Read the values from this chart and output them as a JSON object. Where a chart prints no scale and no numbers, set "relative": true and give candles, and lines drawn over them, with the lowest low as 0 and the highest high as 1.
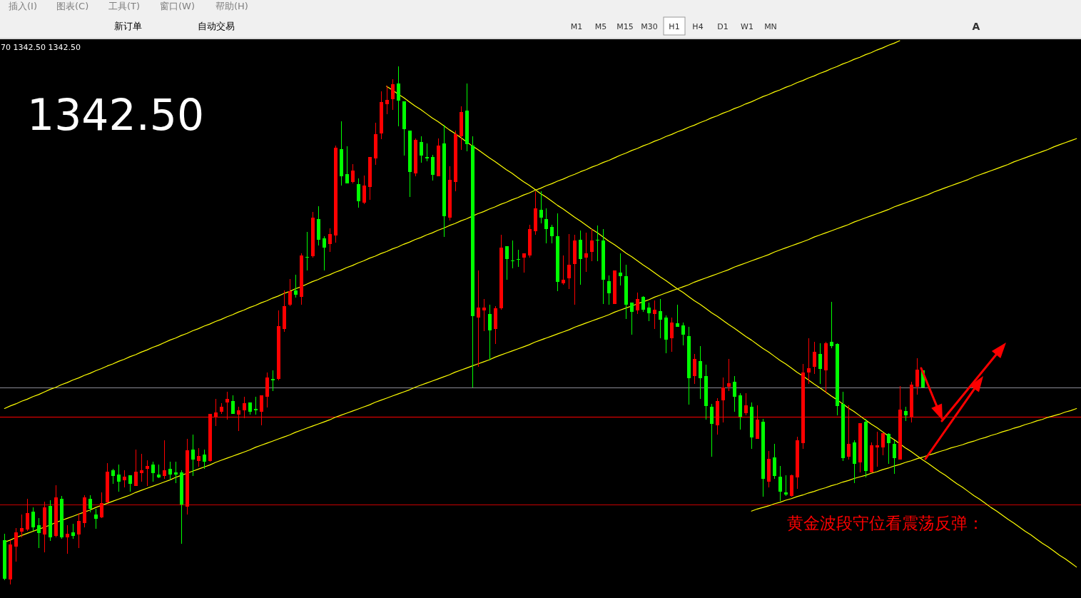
{
  "chart_data": {
    "type": "candlestick",
    "relative": true,
    "categories": [
      null,
      null,
      null,
      null,
      null,
      null,
      null,
      null,
      null,
      null,
      null,
      null,
      null,
      null,
      null,
      null,
      null,
      null,
      null,
      null,
      null,
      null,
      null,
      null,
      null,
      null,
      null,
      null,
      null,
      null,
      null,
      null,
      null,
      null,
      null,
      null,
      null,
      null,
      null,
      null,
      null,
      null,
      null,
      null,
      null,
      null,
      null,
      null,
      null,
      null,
      null,
      null,
      null,
      null,
      null,
      null,
      null,
      null,
      null,
      null,
      null,
      null,
      null,
      null,
      null,
      null,
      null,
      null,
      null,
      null,
      null,
      null,
      null,
      null,
      null,
      null,
      null,
      null,
      null,
      null,
      null,
      null,
      null,
      null,
      null,
      null,
      null,
      null,
      null,
      null,
      null,
      null,
      null,
      null,
      null,
      null,
      null,
      null,
      null,
      null,
      null,
      null,
      null,
      null,
      null,
      null,
      null,
      null,
      null,
      null,
      null,
      null,
      null,
      null,
      null,
      null,
      null,
      null,
      null,
      null,
      null,
      null,
      null,
      null,
      null,
      null,
      null,
      null,
      null,
      null,
      null,
      null,
      null,
      null,
      null,
      null,
      null,
      null,
      null,
      null,
      null,
      null,
      null,
      null,
      null,
      null,
      null,
      null,
      null,
      null,
      null,
      null,
      null,
      null,
      null,
      null,
      null,
      null,
      null,
      null,
      null,
      null,
      null,
      null,
      null,
      null,
      null,
      null,
      null,
      null,
      null,
      null,
      null,
      null,
      null,
      null,
      null,
      null,
      null,
      null,
      null,
      null,
      null,
      null,
      null,
      null,
      null,
      null,
      null
    ],
    "ohlc": [
      [
        0.086,
        0.098,
        0.008,
        0.012
      ],
      [
        0.01,
        0.086,
        0,
        0.078
      ],
      [
        0.074,
        0.109,
        0.045,
        0.101
      ],
      [
        0.103,
        0.136,
        0.091,
        0.109
      ],
      [
        0.106,
        0.166,
        0.104,
        0.138
      ],
      [
        0.141,
        0.149,
        0.104,
        0.111
      ],
      [
        0.115,
        0.129,
        0.071,
        0.1
      ],
      [
        0.097,
        0.16,
        0.063,
        0.149
      ],
      [
        0.152,
        0.163,
        0.085,
        0.092
      ],
      [
        0.094,
        0.192,
        0.092,
        0.169
      ],
      [
        0.166,
        0.171,
        0.088,
        0.091
      ],
      [
        0.092,
        0.115,
        0.06,
        0.098
      ],
      [
        0.101,
        0.118,
        0.088,
        0.094
      ],
      [
        0.097,
        0.138,
        0.071,
        0.123
      ],
      [
        0.119,
        0.173,
        0.111,
        0.169
      ],
      [
        0.166,
        0.173,
        0.14,
        0.146
      ],
      [
        0.136,
        0.147,
        0.108,
        0.127
      ],
      [
        0.13,
        0.178,
        0.128,
        0.158
      ],
      [
        0.159,
        0.235,
        0.157,
        0.218
      ],
      [
        0.221,
        0.224,
        0.194,
        0.21
      ],
      [
        0.213,
        0.232,
        0.18,
        0.199
      ],
      [
        0.202,
        0.221,
        0.188,
        0.209
      ],
      [
        0.211,
        0.211,
        0.18,
        0.194
      ],
      [
        0.191,
        0.261,
        0.191,
        0.218
      ],
      [
        0.215,
        0.253,
        0.199,
        0.221
      ],
      [
        0.223,
        0.24,
        0.191,
        0.229
      ],
      [
        0.232,
        0.238,
        0.199,
        0.215
      ],
      [
        0.213,
        0.232,
        0.205,
        0.207
      ],
      [
        0.21,
        0.278,
        0.204,
        0.221
      ],
      [
        0.224,
        0.238,
        0.202,
        0.212
      ],
      [
        0.216,
        0.238,
        0.196,
        0.212
      ],
      [
        0.216,
        0.221,
        0.079,
        0.155
      ],
      [
        0.151,
        0.281,
        0.135,
        0.259
      ],
      [
        0.261,
        0.289,
        0.21,
        0.242
      ],
      [
        0.239,
        0.264,
        0.228,
        0.249
      ],
      [
        0.251,
        0.261,
        0.223,
        0.237
      ],
      [
        0.239,
        0.329,
        0.237,
        0.329
      ],
      [
        0.324,
        0.358,
        0.306,
        0.333
      ],
      [
        0.334,
        0.35,
        0.33,
        0.344
      ],
      [
        0.351,
        0.372,
        0.319,
        0.358
      ],
      [
        0.355,
        0.366,
        0.33,
        0.33
      ],
      [
        0.328,
        0.344,
        0.297,
        0.336
      ],
      [
        0.337,
        0.363,
        0.322,
        0.35
      ],
      [
        0.352,
        0.352,
        0.328,
        0.334
      ],
      [
        0.339,
        0.363,
        0.328,
        0.337
      ],
      [
        0.334,
        0.366,
        0.308,
        0.366
      ],
      [
        0.362,
        0.409,
        0.342,
        0.4
      ],
      [
        0.397,
        0.413,
        0.374,
        0.394
      ],
      [
        0.397,
        0.529,
        0.394,
        0.499
      ],
      [
        0.494,
        0.568,
        0.488,
        0.538
      ],
      [
        0.54,
        0.59,
        0.537,
        0.567
      ],
      [
        0.568,
        0.598,
        0.554,
        0.559
      ],
      [
        0.556,
        0.64,
        0.54,
        0.635
      ],
      [
        0.633,
        0.681,
        0.607,
        0.631
      ],
      [
        0.634,
        0.72,
        0.631,
        0.709
      ],
      [
        0.706,
        0.731,
        0.654,
        0.666
      ],
      [
        0.669,
        0.672,
        0.607,
        0.65
      ],
      [
        0.657,
        0.688,
        0.642,
        0.677
      ],
      [
        0.674,
        0.848,
        0.66,
        0.843
      ],
      [
        0.84,
        0.895,
        0.771,
        0.788
      ],
      [
        0.792,
        0.846,
        0.774,
        0.774
      ],
      [
        0.777,
        0.812,
        0.774,
        0.8
      ],
      [
        0.773,
        0.784,
        0.727,
        0.74
      ],
      [
        0.737,
        0.789,
        0.734,
        0.771
      ],
      [
        0.767,
        0.826,
        0.743,
        0.826
      ],
      [
        0.823,
        0.892,
        0.81,
        0.869
      ],
      [
        0.871,
        0.952,
        0.86,
        0.931
      ],
      [
        0.927,
        0.963,
        0.908,
        0.935
      ],
      [
        0.937,
        0.975,
        0.916,
        0.966
      ],
      [
        0.968,
        1,
        0.885,
        0.934
      ],
      [
        0.933,
        0.933,
        0.828,
        0.879
      ],
      [
        0.877,
        0.877,
        0.748,
        0.796
      ],
      [
        0.794,
        0.861,
        0.788,
        0.858
      ],
      [
        0.855,
        0.866,
        0.814,
        0.828
      ],
      [
        0.826,
        0.851,
        0.817,
        0.823
      ],
      [
        0.826,
        0.829,
        0.78,
        0.791
      ],
      [
        0.788,
        0.861,
        0.788,
        0.848
      ],
      [
        0.851,
        0.888,
        0.671,
        0.711
      ],
      [
        0.708,
        0.808,
        0.703,
        0.781
      ],
      [
        0.777,
        0.877,
        0.759,
        0.869
      ],
      [
        0.865,
        0.923,
        0.839,
        0.912
      ],
      [
        0.915,
        0.968,
        0.836,
        0.85
      ],
      [
        0.848,
        0.866,
        0.381,
        0.519
      ],
      [
        0.516,
        0.606,
        0.42,
        0.535
      ],
      [
        0.53,
        0.552,
        0.49,
        0.535
      ],
      [
        0.523,
        0.541,
        0.433,
        0.491
      ],
      [
        0.494,
        0.538,
        0.465,
        0.533
      ],
      [
        0.534,
        0.675,
        0.531,
        0.651
      ],
      [
        0.653,
        0.653,
        0.588,
        0.628
      ],
      [
        0.626,
        0.664,
        0.611,
        0.625
      ],
      [
        0.629,
        0.646,
        0.614,
        0.628
      ],
      [
        0.631,
        0.64,
        0.602,
        0.64
      ],
      [
        0.636,
        0.695,
        0.631,
        0.686
      ],
      [
        0.682,
        0.76,
        0.676,
        0.726
      ],
      [
        0.723,
        0.76,
        0.697,
        0.708
      ],
      [
        0.706,
        0.726,
        0.659,
        0.687
      ],
      [
        0.691,
        0.695,
        0.659,
        0.673
      ],
      [
        0.672,
        0.717,
        0.567,
        0.585
      ],
      [
        0.582,
        0.635,
        0.579,
        0.589
      ],
      [
        0.591,
        0.677,
        0.571,
        0.618
      ],
      [
        0.619,
        0.675,
        0.54,
        0.664
      ],
      [
        0.666,
        0.683,
        0.579,
        0.628
      ],
      [
        0.631,
        0.68,
        0.604,
        0.64
      ],
      [
        0.642,
        0.687,
        0.625,
        0.664
      ],
      [
        0.666,
        0.693,
        0.625,
        0.665
      ],
      [
        0.664,
        0.686,
        0.542,
        0.588
      ],
      [
        0.586,
        0.597,
        0.54,
        0.562
      ],
      [
        0.542,
        0.606,
        0.542,
        0.606
      ],
      [
        0.603,
        0.64,
        0.577,
        0.596
      ],
      [
        0.595,
        0.618,
        0.513,
        0.54
      ],
      [
        0.544,
        0.544,
        0.482,
        0.527
      ],
      [
        0.53,
        0.564,
        0.522,
        0.552
      ],
      [
        0.555,
        0.557,
        0.527,
        0.531
      ],
      [
        0.535,
        0.544,
        0.508,
        0.524
      ],
      [
        0.522,
        0.549,
        0.494,
        0.531
      ],
      [
        0.528,
        0.552,
        0.476,
        0.511
      ],
      [
        0.515,
        0.52,
        0.447,
        0.473
      ],
      [
        0.476,
        0.515,
        0.45,
        0.506
      ],
      [
        0.504,
        0.541,
        0.497,
        0.497
      ],
      [
        0.501,
        0.506,
        0.462,
        0.482
      ],
      [
        0.48,
        0.498,
        0.348,
        0.399
      ],
      [
        0.402,
        0.446,
        0.388,
        0.435
      ],
      [
        0.432,
        0.461,
        0.359,
        0.399
      ],
      [
        0.403,
        0.424,
        0.319,
        0.345
      ],
      [
        0.344,
        0.349,
        0.247,
        0.311
      ],
      [
        0.308,
        0.36,
        0.29,
        0.355
      ],
      [
        0.356,
        0.4,
        0.313,
        0.381
      ],
      [
        0.382,
        0.435,
        0.374,
        0.389
      ],
      [
        0.392,
        0.403,
        0.334,
        0.362
      ],
      [
        0.366,
        0.369,
        0.3,
        0.324
      ],
      [
        0.331,
        0.369,
        0.327,
        0.346
      ],
      [
        0.344,
        0.352,
        0.262,
        0.284
      ],
      [
        0.282,
        0.346,
        0.282,
        0.318
      ],
      [
        0.315,
        0.32,
        0.17,
        0.204
      ],
      [
        0.199,
        0.258,
        0.188,
        0.243
      ],
      [
        0.246,
        0.272,
        0.204,
        0.21
      ],
      [
        0.209,
        0.229,
        0.162,
        0.18
      ],
      [
        0.178,
        0.211,
        0.171,
        0.174
      ],
      [
        0.171,
        0.213,
        0.17,
        0.211
      ],
      [
        0.207,
        0.286,
        0.185,
        0.278
      ],
      [
        0.273,
        0.426,
        0.262,
        0.409
      ],
      [
        0.41,
        0.475,
        0.388,
        0.418
      ],
      [
        0.42,
        0.469,
        0.407,
        0.449
      ],
      [
        0.446,
        0.466,
        0.388,
        0.417
      ],
      [
        0.414,
        0.469,
        0.37,
        0.466
      ],
      [
        0.469,
        0.546,
        0.457,
        0.46
      ],
      [
        0.464,
        0.466,
        0.327,
        0.345
      ],
      [
        0.349,
        0.373,
        0.239,
        0.244
      ],
      [
        0.247,
        0.346,
        0.242,
        0.272
      ],
      [
        0.275,
        0.278,
        0.196,
        0.233
      ],
      [
        0.236,
        0.312,
        0.217,
        0.312
      ],
      [
        0.315,
        0.32,
        0.207,
        0.22
      ],
      [
        0.217,
        0.275,
        0.217,
        0.269
      ],
      [
        0.265,
        0.295,
        0.228,
        0.269
      ],
      [
        0.265,
        0.293,
        0.25,
        0.293
      ],
      [
        0.291,
        0.293,
        0.233,
        0.273
      ],
      [
        0.272,
        0.278,
        0.214,
        0.244
      ],
      [
        0.242,
        0.384,
        0.242,
        0.338
      ],
      [
        0.335,
        0.344,
        0.316,
        0.327
      ],
      [
        0.324,
        0.392,
        0.313,
        0.386
      ],
      [
        0.382,
        0.437,
        0.367,
        0.415
      ],
      [
        0.413,
        0.413,
        0.38,
        0.38
      ],
      null,
      null,
      null,
      null,
      null,
      null,
      null,
      null,
      null,
      null,
      null,
      null,
      null,
      null,
      null,
      null,
      null,
      null,
      null,
      null,
      null,
      null,
      null,
      null,
      null,
      null,
      null
    ],
    "colors": [
      "#00ff00",
      "#ff0000",
      "#ff0000",
      "#ff0000",
      "#ff0000",
      "#00ff00",
      "#00ff00",
      "#ff0000",
      "#00ff00",
      "#ff0000",
      "#00ff00",
      "#ff0000",
      "#00ff00",
      "#ff0000",
      "#ff0000",
      "#00ff00",
      "#00ff00",
      "#ff0000",
      "#ff0000",
      "#00ff00",
      "#00ff00",
      "#ff0000",
      "#00ff00",
      "#ff0000",
      "#ff0000",
      "#ff0000",
      "#00ff00",
      "#00ff00",
      "#ff0000",
      "#00ff00",
      "#00ff00",
      "#00ff00",
      "#ff0000",
      "#00ff00",
      "#ff0000",
      "#00ff00",
      "#ff0000",
      "#ff0000",
      "#ff0000",
      "#ff0000",
      "#00ff00",
      "#ff0000",
      "#ff0000",
      "#00ff00",
      "#00ff00",
      "#ff0000",
      "#ff0000",
      "#00ff00",
      "#ff0000",
      "#ff0000",
      "#ff0000",
      "#00ff00",
      "#ff0000",
      "#00ff00",
      "#ff0000",
      "#00ff00",
      "#00ff00",
      "#ff0000",
      "#ff0000",
      "#00ff00",
      "#00ff00",
      "#ff0000",
      "#00ff00",
      "#ff0000",
      "#ff0000",
      "#ff0000",
      "#ff0000",
      "#ff0000",
      "#ff0000",
      "#00ff00",
      "#00ff00",
      "#00ff00",
      "#ff0000",
      "#00ff00",
      "#00ff00",
      "#00ff00",
      "#ff0000",
      "#00ff00",
      "#ff0000",
      "#ff0000",
      "#ff0000",
      "#00ff00",
      "#00ff00",
      "#ff0000",
      "#ff0000",
      "#00ff00",
      "#ff0000",
      "#ff0000",
      "#00ff00",
      "#00ff00",
      "#00ff00",
      "#ff0000",
      "#ff0000",
      "#ff0000",
      "#00ff00",
      "#00ff00",
      "#00ff00",
      "#00ff00",
      "#ff0000",
      "#ff0000",
      "#ff0000",
      "#00ff00",
      "#ff0000",
      "#ff0000",
      "#00ff00",
      "#00ff00",
      "#00ff00",
      "#ff0000",
      "#00ff00",
      "#00ff00",
      "#00ff00",
      "#ff0000",
      "#00ff00",
      "#00ff00",
      "#ff0000",
      "#00ff00",
      "#00ff00",
      "#ff0000",
      "#00ff00",
      "#00ff00",
      "#00ff00",
      "#ff0000",
      "#00ff00",
      "#00ff00",
      "#00ff00",
      "#ff0000",
      "#ff0000",
      "#ff0000",
      "#00ff00",
      "#00ff00",
      "#ff0000",
      "#00ff00",
      "#ff0000",
      "#00ff00",
      "#ff0000",
      "#00ff00",
      "#00ff00",
      "#00ff00",
      "#ff0000",
      "#ff0000",
      "#ff0000",
      "#ff0000",
      "#ff0000",
      "#00ff00",
      "#ff0000",
      "#00ff00",
      "#00ff00",
      "#00ff00",
      "#ff0000",
      "#00ff00",
      "#ff0000",
      "#00ff00",
      "#ff0000",
      "#ff0000",
      "#ff0000",
      "#00ff00",
      "#00ff00",
      "#ff0000",
      "#00ff00",
      "#ff0000",
      "#ff0000",
      "#00ff00",
      null,
      null,
      null,
      null,
      null,
      null,
      null,
      null,
      null,
      null,
      null,
      null,
      null,
      null,
      null,
      null,
      null,
      null,
      null,
      null,
      null,
      null,
      null,
      null,
      null,
      null,
      null
    ],
    "series": [
      {
        "type": "line",
        "color": "#ffff00",
        "values": [
          0.34,
          0.345,
          0.349,
          0.354,
          0.358,
          0.363,
          0.367,
          0.372,
          0.377,
          0.381,
          0.386,
          0.39,
          0.395,
          0.399,
          0.404,
          0.408,
          0.413,
          0.417,
          0.422,
          0.426,
          0.431,
          0.435,
          0.44,
          0.444,
          0.449,
          0.453,
          0.458,
          0.462,
          0.467,
          0.472,
          0.476,
          0.481,
          0.485,
          0.49,
          0.494,
          0.499,
          0.503,
          0.508,
          0.512,
          0.517,
          0.521,
          0.526,
          0.53,
          0.535,
          0.539,
          0.544,
          0.548,
          0.553,
          0.557,
          0.562,
          0.566,
          0.571,
          0.575,
          0.58,
          0.585,
          0.589,
          0.594,
          0.598,
          0.603,
          0.607,
          0.612,
          0.616,
          0.621,
          0.625,
          0.63,
          0.634,
          0.639,
          0.643,
          0.648,
          0.652,
          0.657,
          0.661,
          0.666,
          0.67,
          0.675,
          0.679,
          0.684,
          0.688,
          0.693,
          0.697,
          0.702,
          0.706,
          0.711,
          0.716,
          0.72,
          0.725,
          0.729,
          0.734,
          0.738,
          0.743,
          0.747,
          0.752,
          0.756,
          0.761,
          0.765,
          0.77,
          0.774,
          0.779,
          0.783,
          0.788,
          0.792,
          0.797,
          0.801,
          0.806,
          0.81,
          0.815,
          0.819,
          0.824,
          0.829,
          0.833,
          0.838,
          0.842,
          0.847,
          0.851,
          0.856,
          0.86,
          0.865,
          0.869,
          0.874,
          0.878,
          0.883,
          0.887,
          0.892,
          0.896,
          0.901,
          0.905,
          0.91,
          0.914,
          0.919,
          0.923,
          0.928,
          0.932,
          0.937,
          0.942,
          0.946,
          0.951,
          0.955,
          0.96,
          0.964,
          0.969,
          0.973,
          0.978,
          0.982,
          0.987,
          0.991,
          0.996,
          1.0,
          1.005,
          1.009,
          1.014,
          1.018,
          1.023,
          1.027,
          1.032,
          1.036,
          1.041,
          1.045,
          1.05,
          null,
          null,
          null,
          null,
          null,
          null,
          null,
          null,
          null,
          null,
          null,
          null,
          null,
          null,
          null,
          null,
          null,
          null,
          null,
          null,
          null,
          null,
          null,
          null,
          null,
          null,
          null,
          null,
          null,
          null,
          null
        ]
      },
      {
        "type": "line",
        "color": "#ffff00",
        "values": [
          0.082,
          0.086,
          0.091,
          0.095,
          0.099,
          0.103,
          0.107,
          0.111,
          0.115,
          0.12,
          0.124,
          0.128,
          0.132,
          0.136,
          0.14,
          0.144,
          0.149,
          0.153,
          0.157,
          0.161,
          0.165,
          0.169,
          0.173,
          0.178,
          0.182,
          0.186,
          0.19,
          0.194,
          0.198,
          0.202,
          0.207,
          0.211,
          0.215,
          0.219,
          0.223,
          0.227,
          0.231,
          0.236,
          0.24,
          0.244,
          0.248,
          0.252,
          0.256,
          0.26,
          0.265,
          0.269,
          0.273,
          0.277,
          0.281,
          0.285,
          0.289,
          0.294,
          0.298,
          0.302,
          0.306,
          0.31,
          0.314,
          0.318,
          0.323,
          0.327,
          0.331,
          0.335,
          0.339,
          0.343,
          0.347,
          0.352,
          0.356,
          0.36,
          0.364,
          0.368,
          0.372,
          0.376,
          0.381,
          0.385,
          0.389,
          0.393,
          0.397,
          0.401,
          0.405,
          0.41,
          0.414,
          0.418,
          0.422,
          0.426,
          0.43,
          0.434,
          0.439,
          0.443,
          0.447,
          0.451,
          0.455,
          0.459,
          0.463,
          0.468,
          0.472,
          0.476,
          0.48,
          0.484,
          0.488,
          0.492,
          0.497,
          0.501,
          0.505,
          0.509,
          0.513,
          0.517,
          0.521,
          0.526,
          0.53,
          0.534,
          0.538,
          0.542,
          0.546,
          0.55,
          0.555,
          0.559,
          0.563,
          0.567,
          0.571,
          0.575,
          0.579,
          0.584,
          0.588,
          0.592,
          0.596,
          0.6,
          0.604,
          0.608,
          0.613,
          0.617,
          0.621,
          0.625,
          0.629,
          0.633,
          0.637,
          0.642,
          0.646,
          0.65,
          0.654,
          0.658,
          0.662,
          0.666,
          0.671,
          0.675,
          0.679,
          0.683,
          0.687,
          0.691,
          0.695,
          0.7,
          0.704,
          0.708,
          0.712,
          0.716,
          0.72,
          0.724,
          0.729,
          0.733,
          0.737,
          0.741,
          0.745,
          0.749,
          0.753,
          0.758,
          0.762,
          0.766,
          0.77,
          0.774,
          0.778,
          0.782,
          0.787,
          0.791,
          0.795,
          0.799,
          0.803,
          0.807,
          0.811,
          0.816,
          0.82,
          0.824,
          0.828,
          0.832,
          0.836,
          0.84,
          0.845,
          0.849,
          0.853,
          0.857,
          0.861
        ]
      },
      {
        "type": "line",
        "color": "#ffff00",
        "values": [
          null,
          null,
          null,
          null,
          null,
          null,
          null,
          null,
          null,
          null,
          null,
          null,
          null,
          null,
          null,
          null,
          null,
          null,
          null,
          null,
          null,
          null,
          null,
          null,
          null,
          null,
          null,
          null,
          null,
          null,
          null,
          null,
          null,
          null,
          null,
          null,
          null,
          null,
          null,
          null,
          null,
          null,
          null,
          null,
          null,
          null,
          null,
          null,
          null,
          null,
          null,
          null,
          null,
          null,
          null,
          null,
          null,
          null,
          null,
          null,
          null,
          null,
          null,
          null,
          null,
          null,
          null,
          null,
          null,
          null,
          null,
          null,
          null,
          null,
          null,
          null,
          null,
          null,
          null,
          null,
          null,
          null,
          null,
          null,
          null,
          null,
          null,
          null,
          null,
          null,
          null,
          null,
          null,
          null,
          null,
          null,
          null,
          null,
          null,
          null,
          null,
          null,
          null,
          null,
          null,
          null,
          null,
          null,
          null,
          null,
          null,
          null,
          null,
          null,
          null,
          null,
          null,
          null,
          null,
          null,
          null,
          null,
          null,
          null,
          null,
          null,
          null,
          null,
          null,
          null,
          null,
          0.142,
          0.146,
          0.149,
          0.152,
          0.156,
          0.159,
          0.163,
          0.166,
          0.17,
          0.173,
          0.177,
          0.18,
          0.184,
          0.187,
          0.191,
          0.194,
          0.198,
          0.201,
          0.205,
          0.208,
          0.211,
          0.215,
          0.218,
          0.222,
          0.225,
          0.229,
          0.232,
          0.236,
          0.239,
          0.243,
          0.246,
          0.25,
          0.253,
          0.257,
          0.26,
          0.264,
          0.267,
          0.27,
          0.274,
          0.277,
          0.281,
          0.284,
          0.288,
          0.291,
          0.295,
          0.298,
          0.302,
          0.305,
          0.309,
          0.312,
          0.316,
          0.319,
          0.323,
          0.326,
          0.329,
          0.333,
          0.336,
          0.34
        ]
      },
      {
        "type": "line",
        "color": "#ffff00",
        "values": [
          null,
          null,
          null,
          null,
          null,
          null,
          null,
          null,
          null,
          null,
          null,
          null,
          null,
          null,
          null,
          null,
          null,
          null,
          null,
          null,
          null,
          null,
          null,
          null,
          null,
          null,
          null,
          null,
          null,
          null,
          null,
          null,
          null,
          null,
          null,
          null,
          null,
          null,
          null,
          null,
          null,
          null,
          null,
          null,
          null,
          null,
          null,
          null,
          null,
          null,
          null,
          null,
          null,
          null,
          null,
          null,
          null,
          null,
          null,
          null,
          null,
          null,
          null,
          null,
          null,
          null,
          null,
          0.962,
          0.955,
          0.947,
          0.94,
          0.932,
          0.924,
          0.917,
          0.909,
          0.901,
          0.894,
          0.886,
          0.878,
          0.871,
          0.863,
          0.855,
          0.847,
          0.84,
          0.832,
          0.824,
          0.817,
          0.809,
          0.801,
          0.794,
          0.786,
          0.778,
          0.771,
          0.763,
          0.755,
          0.748,
          0.74,
          0.732,
          0.725,
          0.717,
          0.709,
          0.702,
          0.694,
          0.686,
          0.679,
          0.671,
          0.663,
          0.656,
          0.648,
          0.64,
          0.633,
          0.625,
          0.617,
          0.61,
          0.602,
          0.594,
          0.587,
          0.579,
          0.571,
          0.564,
          0.556,
          0.548,
          0.541,
          0.533,
          0.525,
          0.518,
          0.51,
          0.502,
          0.495,
          0.487,
          0.479,
          0.472,
          0.464,
          0.456,
          0.449,
          0.441,
          0.433,
          0.426,
          0.418,
          0.41,
          0.403,
          0.395,
          0.387,
          0.38,
          0.372,
          0.364,
          0.357,
          0.349,
          0.341,
          0.334,
          0.326,
          0.318,
          0.31,
          0.303,
          0.295,
          0.287,
          0.28,
          0.272,
          0.264,
          0.257,
          0.249,
          0.241,
          0.234,
          0.226,
          0.218,
          0.211,
          0.203,
          0.195,
          0.188,
          0.18,
          0.172,
          0.165,
          0.157,
          0.149,
          0.142,
          0.134,
          0.126,
          0.119,
          0.111,
          0.103,
          0.096,
          0.088,
          0.08,
          0.073,
          0.065,
          0.057,
          0.05,
          0.042,
          0.034
        ]
      }
    ],
    "ref_lines": [
      {
        "axis": "y",
        "value": 0.381,
        "color": "#8c8c96"
      },
      {
        "axis": "y",
        "value": 0.324,
        "color": "#ff0000"
      },
      {
        "axis": "y",
        "value": 0.155,
        "color": "#c80000"
      }
    ],
    "annotations": [
      "1342.50",
      "70 1342.50 1342.50",
      "黄金波段守位看震荡反弹：",
      "插入(I)",
      "图表(C)",
      "工具(T)",
      "窗口(W)",
      "帮助(H)",
      "新订单",
      "自动交易",
      "M1",
      "M5",
      "M15",
      "M30",
      "H1",
      "H4",
      "D1",
      "W1",
      "MN",
      "A"
    ]
  }
}
